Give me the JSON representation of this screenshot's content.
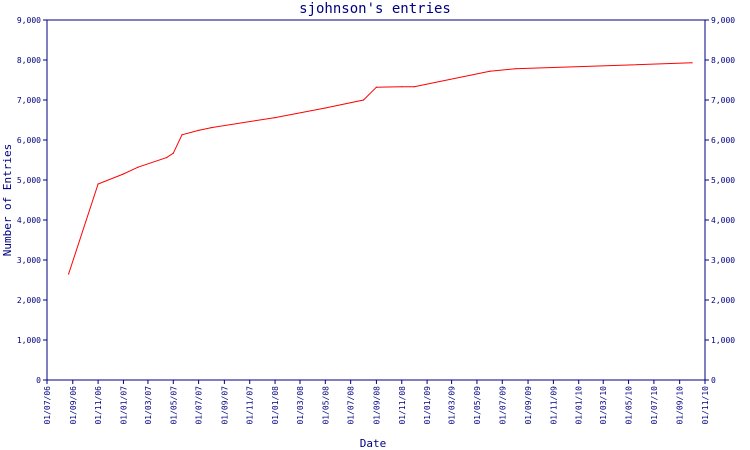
{
  "chart_data": {
    "type": "line",
    "title": "sjohnson's entries",
    "xlabel": "Date",
    "ylabel": "Number of Entries",
    "ylim": [
      0,
      9000
    ],
    "y_ticks": [
      0,
      1000,
      2000,
      3000,
      4000,
      5000,
      6000,
      7000,
      8000,
      9000
    ],
    "y_tick_labels": [
      "0",
      "1,000",
      "2,000",
      "3,000",
      "4,000",
      "5,000",
      "6,000",
      "7,000",
      "8,000",
      "9,000"
    ],
    "y_axis_right": true,
    "xlim": [
      "2006-07-01",
      "2010-11-01"
    ],
    "x_tick_dates": [
      "2006-07-01",
      "2006-09-01",
      "2006-11-01",
      "2007-01-01",
      "2007-03-01",
      "2007-05-01",
      "2007-07-01",
      "2007-09-01",
      "2007-11-01",
      "2008-01-01",
      "2008-03-01",
      "2008-05-01",
      "2008-07-01",
      "2008-09-01",
      "2008-11-01",
      "2009-01-01",
      "2009-03-01",
      "2009-05-01",
      "2009-07-01",
      "2009-09-01",
      "2009-11-01",
      "2010-01-01",
      "2010-03-01",
      "2010-05-01",
      "2010-07-01",
      "2010-09-01",
      "2010-11-01"
    ],
    "x_tick_labels": [
      "01/07/06",
      "01/09/06",
      "01/11/06",
      "01/01/07",
      "01/03/07",
      "01/05/07",
      "01/07/07",
      "01/09/07",
      "01/11/07",
      "01/01/08",
      "01/03/08",
      "01/05/08",
      "01/07/08",
      "01/09/08",
      "01/11/08",
      "01/01/09",
      "01/03/09",
      "01/05/09",
      "01/07/09",
      "01/09/09",
      "01/11/09",
      "01/01/10",
      "01/03/10",
      "01/05/10",
      "01/07/10",
      "01/09/10",
      "01/11/10"
    ],
    "grid": false,
    "legend": false,
    "colors": {
      "line": "#ff0000",
      "axis": "#000080",
      "background": "#ffffff"
    },
    "series": [
      {
        "x": [
          "2006-08-22",
          "2006-11-01",
          "2007-01-01",
          "2007-02-05",
          "2007-04-15",
          "2007-05-01",
          "2007-05-22",
          "2007-07-01",
          "2007-08-01",
          "2008-01-01",
          "2008-05-01",
          "2008-08-01",
          "2008-09-01",
          "2008-11-01",
          "2008-12-01",
          "2009-06-01",
          "2009-08-01",
          "2010-10-01"
        ],
        "y": [
          2650,
          4900,
          5150,
          5320,
          5560,
          5670,
          6130,
          6240,
          6310,
          6560,
          6800,
          7000,
          7320,
          7330,
          7330,
          7720,
          7780,
          7930
        ]
      }
    ]
  }
}
